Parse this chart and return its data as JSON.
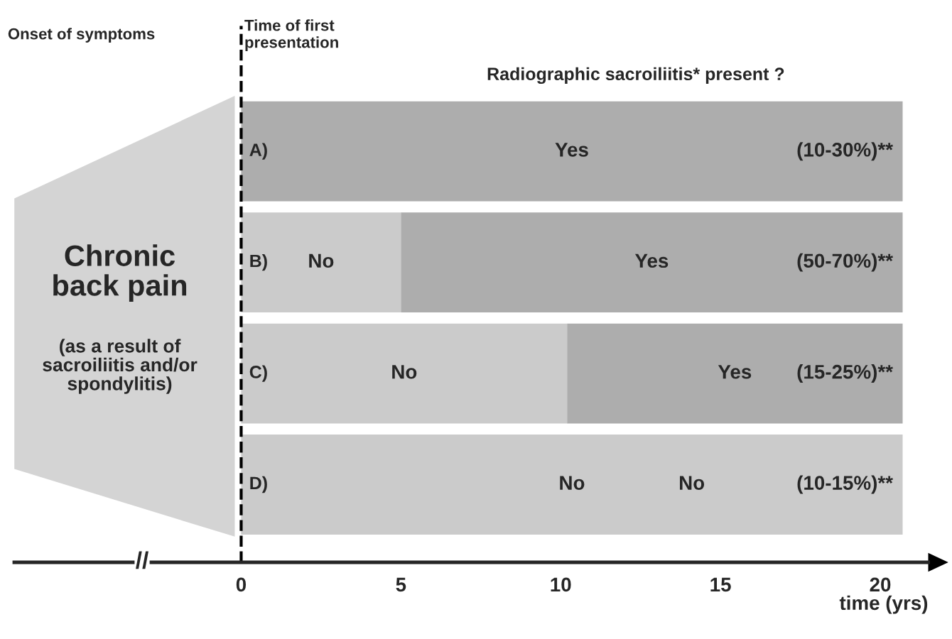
{
  "chart_data": {
    "type": "bar",
    "orientation": "horizontal",
    "stacked": true,
    "title": "Radiographic sacroiliitis* present ?",
    "xlabel": "time (yrs)",
    "categories": [
      "A)",
      "B)",
      "C)",
      "D)"
    ],
    "series": [
      {
        "colors": [
          "#adadad",
          "#cbcbcb",
          "#cbcbcb",
          "#cbcbcb"
        ],
        "values": [
          20.7,
          5,
          10.2,
          20.7
        ],
        "value_labels": [
          "Yes",
          "No",
          "No",
          "No"
        ]
      },
      {
        "colors": [
          null,
          "#adadad",
          "#adadad",
          null
        ],
        "values": [
          null,
          15.7,
          10.5,
          null
        ],
        "value_labels": [
          null,
          "Yes",
          "Yes",
          null
        ]
      }
    ],
    "xlim": [
      -7.1,
      21.5
    ],
    "xticks": [
      0,
      5,
      10,
      15,
      20
    ],
    "ref_lines": [
      {
        "axis": "x",
        "value": 0,
        "label": "Time of first\npresentation",
        "color": "#000000",
        "line_style": "dashed"
      }
    ],
    "annotations": [
      "Onset of symptoms",
      "Chronic\nback pain",
      "(as a result of\nsacroiliitis and/or\nspondylitis)",
      "(10-30%)**",
      "(50-70%)**",
      "(15-25%)**",
      "(10-15%)**",
      "No",
      "//"
    ],
    "grid": false,
    "legend": false
  }
}
